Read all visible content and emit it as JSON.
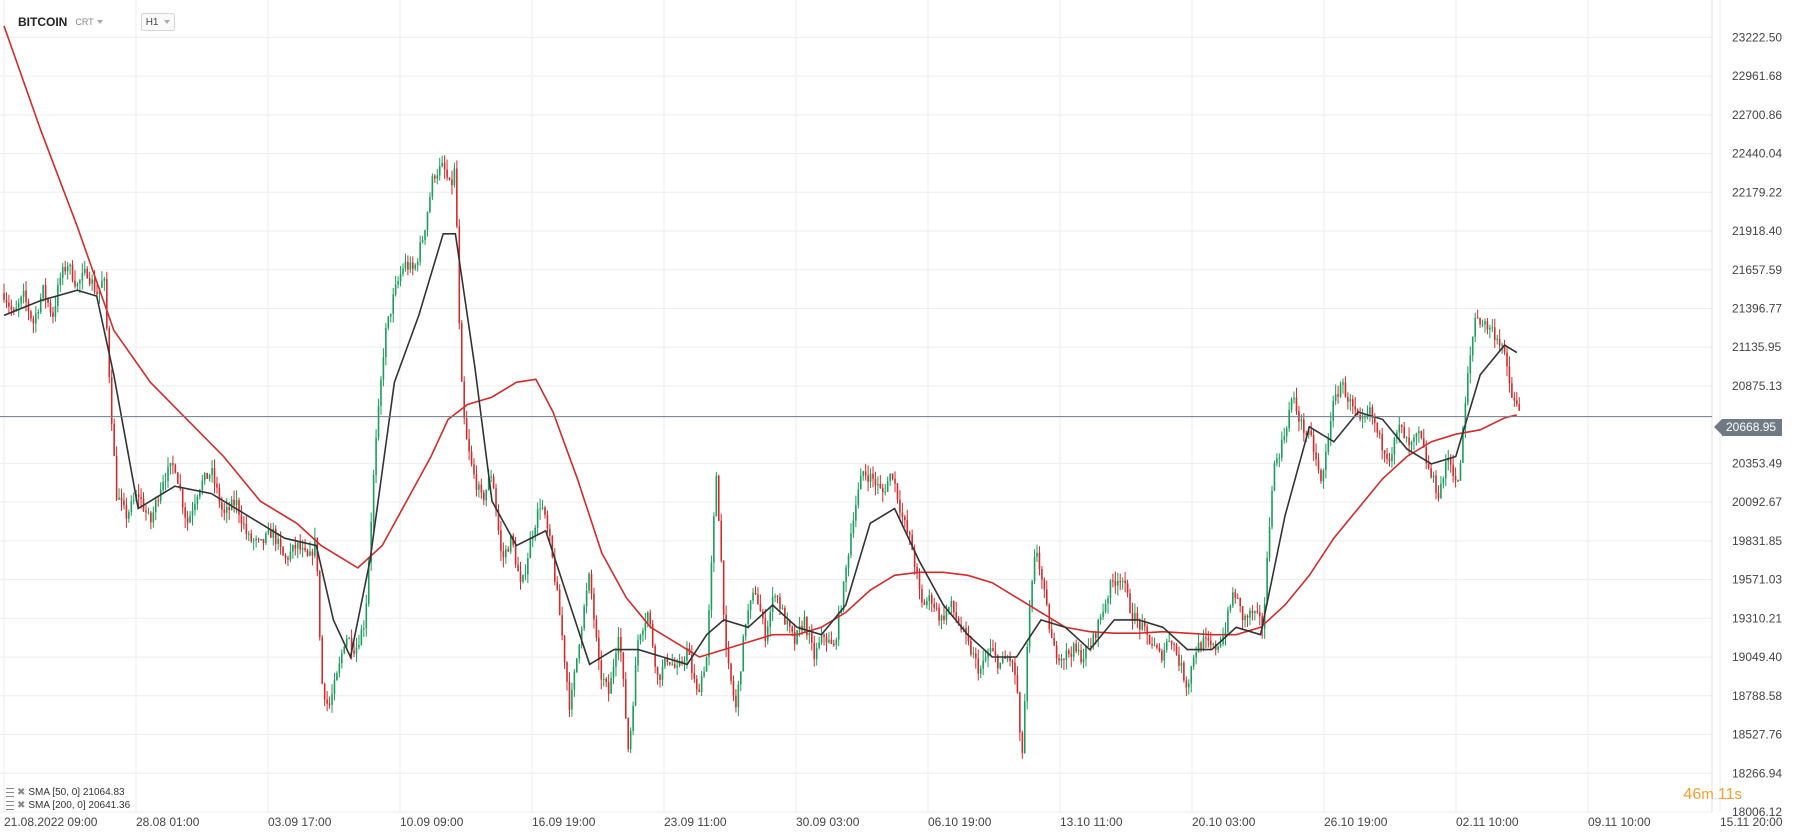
{
  "header": {
    "symbol": "BITCOIN",
    "symbol_tag": "CRT",
    "timeframe": "H1"
  },
  "indicators": [
    {
      "label": "SMA [50, 0] 21064.83",
      "color": "#333333"
    },
    {
      "label": "SMA [200, 0] 20641.36",
      "color": "#d22b2b"
    }
  ],
  "countdown": {
    "minutes": "46",
    "m_unit": "m",
    "seconds": "11",
    "s_unit": "s"
  },
  "colors": {
    "up": "#1a9e5c",
    "down": "#d22b2b",
    "sma50": "#333333",
    "sma200": "#d22b2b",
    "grid": "#eeeeee",
    "last_price_line": "#6f7a84"
  },
  "chart_data": {
    "type": "candlestick",
    "title": "",
    "y_ticks": [
      23222.5,
      22961.68,
      22700.86,
      22440.04,
      22179.22,
      21918.4,
      21657.59,
      21396.77,
      21135.95,
      20875.13,
      20353.49,
      20092.67,
      19831.85,
      19571.03,
      19310.21,
      19049.4,
      18788.58,
      18527.76,
      18266.94,
      18006.12
    ],
    "y_tick_labels": [
      "23222.50",
      "22961.68",
      "22700.86",
      "22440.04",
      "22179.22",
      "21918.40",
      "21657.59",
      "21396.77",
      "21135.95",
      "20875.13",
      "20353.49",
      "20092.67",
      "19831.85",
      "19571.03",
      "19310.21",
      "19049.40",
      "18788.58",
      "18527.76",
      "18266.94",
      "18006.12"
    ],
    "ylim": [
      18006.12,
      23352.91
    ],
    "last_price": 20668.95,
    "last_price_label": "20668.95",
    "x_ticks": [
      "21.08.2022  09:00",
      "28.08  01:00",
      "03.09  17:00",
      "10.09  09:00",
      "16.09  19:00",
      "23.09  11:00",
      "30.09  03:00",
      "06.10  19:00",
      "13.10  11:00",
      "20.10  03:00",
      "26.10  19:00",
      "02.11  10:00",
      "09.11  10:00",
      "15.11  20:00"
    ],
    "price_path": [
      {
        "x": 0.0,
        "y": 21500
      },
      {
        "x": 0.4,
        "y": 21350
      },
      {
        "x": 0.8,
        "y": 21480
      },
      {
        "x": 1.2,
        "y": 21300
      },
      {
        "x": 1.6,
        "y": 21520
      },
      {
        "x": 2.0,
        "y": 21350
      },
      {
        "x": 2.3,
        "y": 21600
      },
      {
        "x": 2.6,
        "y": 21700
      },
      {
        "x": 3.0,
        "y": 21550
      },
      {
        "x": 3.4,
        "y": 21650
      },
      {
        "x": 3.8,
        "y": 21500
      },
      {
        "x": 4.1,
        "y": 21600
      },
      {
        "x": 4.4,
        "y": 20700
      },
      {
        "x": 4.6,
        "y": 20150
      },
      {
        "x": 5.0,
        "y": 20000
      },
      {
        "x": 5.5,
        "y": 20150
      },
      {
        "x": 6.0,
        "y": 19950
      },
      {
        "x": 6.5,
        "y": 20250
      },
      {
        "x": 7.0,
        "y": 20350
      },
      {
        "x": 7.5,
        "y": 19950
      },
      {
        "x": 8.0,
        "y": 20200
      },
      {
        "x": 8.5,
        "y": 20300
      },
      {
        "x": 9.0,
        "y": 20000
      },
      {
        "x": 9.5,
        "y": 20100
      },
      {
        "x": 10.0,
        "y": 19850
      },
      {
        "x": 10.5,
        "y": 19800
      },
      {
        "x": 11.0,
        "y": 19900
      },
      {
        "x": 11.5,
        "y": 19700
      },
      {
        "x": 12.0,
        "y": 19800
      },
      {
        "x": 12.5,
        "y": 19700
      },
      {
        "x": 12.8,
        "y": 19850
      },
      {
        "x": 13.0,
        "y": 18900
      },
      {
        "x": 13.3,
        "y": 18700
      },
      {
        "x": 13.7,
        "y": 18950
      },
      {
        "x": 14.0,
        "y": 19200
      },
      {
        "x": 14.4,
        "y": 19100
      },
      {
        "x": 14.8,
        "y": 19300
      },
      {
        "x": 15.2,
        "y": 20400
      },
      {
        "x": 15.6,
        "y": 21200
      },
      {
        "x": 16.0,
        "y": 21500
      },
      {
        "x": 16.4,
        "y": 21700
      },
      {
        "x": 16.8,
        "y": 21650
      },
      {
        "x": 17.2,
        "y": 21900
      },
      {
        "x": 17.6,
        "y": 22300
      },
      {
        "x": 18.0,
        "y": 22350
      },
      {
        "x": 18.3,
        "y": 22200
      },
      {
        "x": 18.5,
        "y": 22350
      },
      {
        "x": 18.7,
        "y": 21000
      },
      {
        "x": 18.9,
        "y": 20550
      },
      {
        "x": 19.2,
        "y": 20300
      },
      {
        "x": 19.6,
        "y": 20100
      },
      {
        "x": 20.0,
        "y": 20300
      },
      {
        "x": 20.4,
        "y": 19700
      },
      {
        "x": 20.8,
        "y": 19850
      },
      {
        "x": 21.2,
        "y": 19500
      },
      {
        "x": 21.6,
        "y": 19850
      },
      {
        "x": 22.0,
        "y": 20100
      },
      {
        "x": 22.4,
        "y": 19800
      },
      {
        "x": 22.8,
        "y": 19300
      },
      {
        "x": 23.2,
        "y": 18700
      },
      {
        "x": 23.6,
        "y": 19200
      },
      {
        "x": 24.0,
        "y": 19600
      },
      {
        "x": 24.4,
        "y": 18950
      },
      {
        "x": 24.8,
        "y": 18800
      },
      {
        "x": 25.2,
        "y": 19250
      },
      {
        "x": 25.6,
        "y": 18400
      },
      {
        "x": 26.0,
        "y": 19200
      },
      {
        "x": 26.4,
        "y": 19350
      },
      {
        "x": 26.8,
        "y": 18900
      },
      {
        "x": 27.2,
        "y": 19050
      },
      {
        "x": 27.6,
        "y": 18950
      },
      {
        "x": 28.0,
        "y": 19100
      },
      {
        "x": 28.4,
        "y": 18800
      },
      {
        "x": 28.8,
        "y": 19050
      },
      {
        "x": 29.2,
        "y": 20300
      },
      {
        "x": 29.6,
        "y": 19050
      },
      {
        "x": 30.0,
        "y": 18700
      },
      {
        "x": 30.4,
        "y": 19300
      },
      {
        "x": 30.8,
        "y": 19500
      },
      {
        "x": 31.2,
        "y": 19200
      },
      {
        "x": 31.6,
        "y": 19500
      },
      {
        "x": 32.0,
        "y": 19300
      },
      {
        "x": 32.4,
        "y": 19150
      },
      {
        "x": 32.8,
        "y": 19300
      },
      {
        "x": 33.2,
        "y": 19050
      },
      {
        "x": 33.6,
        "y": 19200
      },
      {
        "x": 34.0,
        "y": 19100
      },
      {
        "x": 34.4,
        "y": 19500
      },
      {
        "x": 34.8,
        "y": 20000
      },
      {
        "x": 35.2,
        "y": 20300
      },
      {
        "x": 35.6,
        "y": 20250
      },
      {
        "x": 36.0,
        "y": 20150
      },
      {
        "x": 36.4,
        "y": 20300
      },
      {
        "x": 36.8,
        "y": 20000
      },
      {
        "x": 37.2,
        "y": 19800
      },
      {
        "x": 37.6,
        "y": 19400
      },
      {
        "x": 38.0,
        "y": 19450
      },
      {
        "x": 38.4,
        "y": 19300
      },
      {
        "x": 38.8,
        "y": 19400
      },
      {
        "x": 39.2,
        "y": 19250
      },
      {
        "x": 39.6,
        "y": 19100
      },
      {
        "x": 40.0,
        "y": 18950
      },
      {
        "x": 40.4,
        "y": 19100
      },
      {
        "x": 40.8,
        "y": 19000
      },
      {
        "x": 41.2,
        "y": 19050
      },
      {
        "x": 41.5,
        "y": 18900
      },
      {
        "x": 41.7,
        "y": 18300
      },
      {
        "x": 42.0,
        "y": 19300
      },
      {
        "x": 42.3,
        "y": 19800
      },
      {
        "x": 42.6,
        "y": 19500
      },
      {
        "x": 43.0,
        "y": 19100
      },
      {
        "x": 43.4,
        "y": 19050
      },
      {
        "x": 43.8,
        "y": 19100
      },
      {
        "x": 44.2,
        "y": 19050
      },
      {
        "x": 44.6,
        "y": 19150
      },
      {
        "x": 45.0,
        "y": 19350
      },
      {
        "x": 45.4,
        "y": 19550
      },
      {
        "x": 45.8,
        "y": 19600
      },
      {
        "x": 46.2,
        "y": 19350
      },
      {
        "x": 46.6,
        "y": 19250
      },
      {
        "x": 47.0,
        "y": 19150
      },
      {
        "x": 47.4,
        "y": 19050
      },
      {
        "x": 47.8,
        "y": 19200
      },
      {
        "x": 48.2,
        "y": 19000
      },
      {
        "x": 48.5,
        "y": 18850
      },
      {
        "x": 48.8,
        "y": 19100
      },
      {
        "x": 49.2,
        "y": 19150
      },
      {
        "x": 49.6,
        "y": 19100
      },
      {
        "x": 50.0,
        "y": 19200
      },
      {
        "x": 50.4,
        "y": 19500
      },
      {
        "x": 50.8,
        "y": 19300
      },
      {
        "x": 51.2,
        "y": 19350
      },
      {
        "x": 51.6,
        "y": 19250
      },
      {
        "x": 52.0,
        "y": 20300
      },
      {
        "x": 52.4,
        "y": 20500
      },
      {
        "x": 52.8,
        "y": 20800
      },
      {
        "x": 53.2,
        "y": 20600
      },
      {
        "x": 53.6,
        "y": 20500
      },
      {
        "x": 54.0,
        "y": 20200
      },
      {
        "x": 54.4,
        "y": 20700
      },
      {
        "x": 54.8,
        "y": 20900
      },
      {
        "x": 55.2,
        "y": 20750
      },
      {
        "x": 55.6,
        "y": 20600
      },
      {
        "x": 56.0,
        "y": 20700
      },
      {
        "x": 56.4,
        "y": 20500
      },
      {
        "x": 56.8,
        "y": 20400
      },
      {
        "x": 57.2,
        "y": 20600
      },
      {
        "x": 57.6,
        "y": 20450
      },
      {
        "x": 58.0,
        "y": 20550
      },
      {
        "x": 58.4,
        "y": 20300
      },
      {
        "x": 58.8,
        "y": 20150
      },
      {
        "x": 59.2,
        "y": 20400
      },
      {
        "x": 59.6,
        "y": 20200
      },
      {
        "x": 60.0,
        "y": 20950
      },
      {
        "x": 60.3,
        "y": 21350
      },
      {
        "x": 60.6,
        "y": 21300
      },
      {
        "x": 61.0,
        "y": 21250
      },
      {
        "x": 61.4,
        "y": 21150
      },
      {
        "x": 61.8,
        "y": 20800
      },
      {
        "x": 62.1,
        "y": 20700
      }
    ],
    "sma50_path": [
      {
        "x": 0.0,
        "y": 21350
      },
      {
        "x": 1.5,
        "y": 21450
      },
      {
        "x": 3.0,
        "y": 21520
      },
      {
        "x": 3.8,
        "y": 21480
      },
      {
        "x": 4.5,
        "y": 20950
      },
      {
        "x": 5.5,
        "y": 20050
      },
      {
        "x": 6.0,
        "y": 20100
      },
      {
        "x": 7.0,
        "y": 20200
      },
      {
        "x": 8.5,
        "y": 20150
      },
      {
        "x": 10.0,
        "y": 20000
      },
      {
        "x": 11.5,
        "y": 19850
      },
      {
        "x": 12.8,
        "y": 19800
      },
      {
        "x": 13.5,
        "y": 19300
      },
      {
        "x": 14.2,
        "y": 19050
      },
      {
        "x": 15.0,
        "y": 19700
      },
      {
        "x": 16.0,
        "y": 20900
      },
      {
        "x": 17.0,
        "y": 21350
      },
      {
        "x": 18.0,
        "y": 21900
      },
      {
        "x": 18.5,
        "y": 21900
      },
      {
        "x": 19.3,
        "y": 21000
      },
      {
        "x": 20.0,
        "y": 20100
      },
      {
        "x": 21.0,
        "y": 19800
      },
      {
        "x": 22.2,
        "y": 19900
      },
      {
        "x": 23.0,
        "y": 19500
      },
      {
        "x": 24.0,
        "y": 19000
      },
      {
        "x": 25.0,
        "y": 19100
      },
      {
        "x": 26.0,
        "y": 19100
      },
      {
        "x": 27.0,
        "y": 19050
      },
      {
        "x": 28.0,
        "y": 19000
      },
      {
        "x": 28.8,
        "y": 19200
      },
      {
        "x": 29.5,
        "y": 19300
      },
      {
        "x": 30.5,
        "y": 19250
      },
      {
        "x": 31.5,
        "y": 19400
      },
      {
        "x": 32.5,
        "y": 19250
      },
      {
        "x": 33.5,
        "y": 19200
      },
      {
        "x": 34.5,
        "y": 19400
      },
      {
        "x": 35.5,
        "y": 19950
      },
      {
        "x": 36.5,
        "y": 20050
      },
      {
        "x": 37.5,
        "y": 19700
      },
      {
        "x": 38.5,
        "y": 19400
      },
      {
        "x": 39.5,
        "y": 19200
      },
      {
        "x": 40.5,
        "y": 19050
      },
      {
        "x": 41.5,
        "y": 19050
      },
      {
        "x": 42.5,
        "y": 19300
      },
      {
        "x": 43.5,
        "y": 19250
      },
      {
        "x": 44.5,
        "y": 19100
      },
      {
        "x": 45.5,
        "y": 19300
      },
      {
        "x": 46.5,
        "y": 19300
      },
      {
        "x": 47.5,
        "y": 19250
      },
      {
        "x": 48.5,
        "y": 19100
      },
      {
        "x": 49.5,
        "y": 19100
      },
      {
        "x": 50.5,
        "y": 19250
      },
      {
        "x": 51.5,
        "y": 19200
      },
      {
        "x": 52.5,
        "y": 20000
      },
      {
        "x": 53.5,
        "y": 20600
      },
      {
        "x": 54.5,
        "y": 20500
      },
      {
        "x": 55.5,
        "y": 20700
      },
      {
        "x": 56.5,
        "y": 20650
      },
      {
        "x": 57.5,
        "y": 20450
      },
      {
        "x": 58.5,
        "y": 20350
      },
      {
        "x": 59.5,
        "y": 20400
      },
      {
        "x": 60.5,
        "y": 20950
      },
      {
        "x": 61.5,
        "y": 21150
      },
      {
        "x": 62.0,
        "y": 21100
      }
    ],
    "sma200_path": [
      {
        "x": 0.0,
        "y": 23300
      },
      {
        "x": 1.5,
        "y": 22600
      },
      {
        "x": 3.0,
        "y": 21950
      },
      {
        "x": 4.5,
        "y": 21250
      },
      {
        "x": 6.0,
        "y": 20900
      },
      {
        "x": 7.5,
        "y": 20650
      },
      {
        "x": 9.0,
        "y": 20400
      },
      {
        "x": 10.5,
        "y": 20100
      },
      {
        "x": 12.0,
        "y": 19950
      },
      {
        "x": 13.0,
        "y": 19800
      },
      {
        "x": 14.5,
        "y": 19650
      },
      {
        "x": 15.5,
        "y": 19800
      },
      {
        "x": 16.5,
        "y": 20100
      },
      {
        "x": 17.5,
        "y": 20400
      },
      {
        "x": 18.2,
        "y": 20650
      },
      {
        "x": 19.0,
        "y": 20750
      },
      {
        "x": 20.0,
        "y": 20800
      },
      {
        "x": 21.0,
        "y": 20900
      },
      {
        "x": 21.8,
        "y": 20920
      },
      {
        "x": 22.5,
        "y": 20700
      },
      {
        "x": 23.5,
        "y": 20250
      },
      {
        "x": 24.5,
        "y": 19750
      },
      {
        "x": 25.5,
        "y": 19450
      },
      {
        "x": 26.5,
        "y": 19250
      },
      {
        "x": 27.5,
        "y": 19150
      },
      {
        "x": 28.5,
        "y": 19050
      },
      {
        "x": 29.5,
        "y": 19100
      },
      {
        "x": 30.5,
        "y": 19150
      },
      {
        "x": 31.5,
        "y": 19200
      },
      {
        "x": 32.5,
        "y": 19200
      },
      {
        "x": 33.5,
        "y": 19250
      },
      {
        "x": 34.5,
        "y": 19350
      },
      {
        "x": 35.5,
        "y": 19500
      },
      {
        "x": 36.5,
        "y": 19600
      },
      {
        "x": 37.5,
        "y": 19620
      },
      {
        "x": 38.5,
        "y": 19620
      },
      {
        "x": 39.5,
        "y": 19600
      },
      {
        "x": 40.5,
        "y": 19550
      },
      {
        "x": 41.5,
        "y": 19450
      },
      {
        "x": 42.5,
        "y": 19350
      },
      {
        "x": 43.5,
        "y": 19250
      },
      {
        "x": 44.5,
        "y": 19220
      },
      {
        "x": 45.5,
        "y": 19210
      },
      {
        "x": 46.5,
        "y": 19210
      },
      {
        "x": 47.5,
        "y": 19220
      },
      {
        "x": 48.5,
        "y": 19210
      },
      {
        "x": 49.5,
        "y": 19200
      },
      {
        "x": 50.5,
        "y": 19200
      },
      {
        "x": 51.5,
        "y": 19250
      },
      {
        "x": 52.5,
        "y": 19400
      },
      {
        "x": 53.5,
        "y": 19600
      },
      {
        "x": 54.5,
        "y": 19850
      },
      {
        "x": 55.5,
        "y": 20050
      },
      {
        "x": 56.5,
        "y": 20250
      },
      {
        "x": 57.5,
        "y": 20400
      },
      {
        "x": 58.5,
        "y": 20500
      },
      {
        "x": 59.5,
        "y": 20550
      },
      {
        "x": 60.5,
        "y": 20580
      },
      {
        "x": 61.5,
        "y": 20660
      },
      {
        "x": 62.0,
        "y": 20680
      }
    ]
  }
}
